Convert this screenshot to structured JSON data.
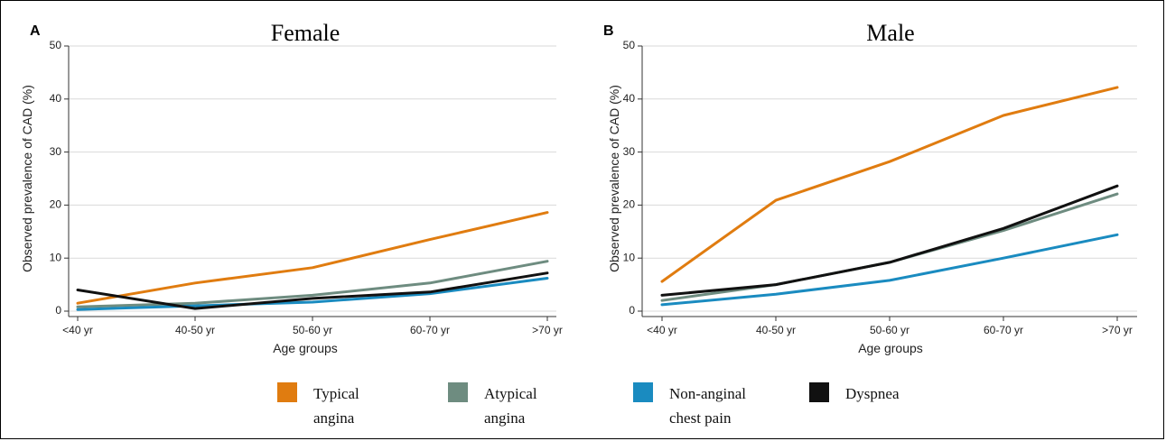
{
  "legend": {
    "items": [
      {
        "lines": [
          "Typical",
          "angina"
        ],
        "color": "#e07c10"
      },
      {
        "lines": [
          "Atypical",
          "angina"
        ],
        "color": "#6e8c80"
      },
      {
        "lines": [
          "Non-anginal",
          "chest pain"
        ],
        "color": "#1a8bc0"
      },
      {
        "lines": [
          "Dyspnea"
        ],
        "color": "#111111"
      }
    ]
  },
  "chart_data": [
    {
      "type": "line",
      "panel_label": "A",
      "title": "Female",
      "xlabel": "Age groups",
      "ylabel": "Observed prevalence of CAD (%)",
      "categories": [
        "<40 yr",
        "40-50 yr",
        "50-60 yr",
        "60-70 yr",
        ">70 yr"
      ],
      "ylim": [
        0,
        50
      ],
      "yticks": [
        0,
        10,
        20,
        30,
        40,
        50
      ],
      "grid": true,
      "series": [
        {
          "name": "Typical angina",
          "color": "#e07c10",
          "values": [
            1.5,
            5.3,
            8.2,
            13.5,
            18.6
          ]
        },
        {
          "name": "Atypical angina",
          "color": "#6e8c80",
          "values": [
            0.8,
            1.5,
            3.0,
            5.3,
            9.4
          ]
        },
        {
          "name": "Non-anginal chest pain",
          "color": "#1a8bc0",
          "values": [
            0.3,
            1.0,
            1.7,
            3.3,
            6.2
          ]
        },
        {
          "name": "Dyspnea",
          "color": "#111111",
          "values": [
            4.0,
            0.5,
            2.4,
            3.6,
            7.2
          ]
        }
      ]
    },
    {
      "type": "line",
      "panel_label": "B",
      "title": "Male",
      "xlabel": "Age groups",
      "ylabel": "Observed prevalence of CAD (%)",
      "categories": [
        "<40 yr",
        "40-50 yr",
        "50-60 yr",
        "60-70 yr",
        ">70 yr"
      ],
      "ylim": [
        0,
        50
      ],
      "yticks": [
        0,
        10,
        20,
        30,
        40,
        50
      ],
      "grid": true,
      "series": [
        {
          "name": "Typical angina",
          "color": "#e07c10",
          "values": [
            5.6,
            20.9,
            28.2,
            36.9,
            42.2
          ]
        },
        {
          "name": "Atypical angina",
          "color": "#6e8c80",
          "values": [
            2.0,
            5.0,
            9.2,
            15.2,
            22.1
          ]
        },
        {
          "name": "Non-anginal chest pain",
          "color": "#1a8bc0",
          "values": [
            1.2,
            3.2,
            5.8,
            10.0,
            14.4
          ]
        },
        {
          "name": "Dyspnea",
          "color": "#111111",
          "values": [
            3.0,
            5.0,
            9.2,
            15.6,
            23.6
          ]
        }
      ]
    }
  ]
}
